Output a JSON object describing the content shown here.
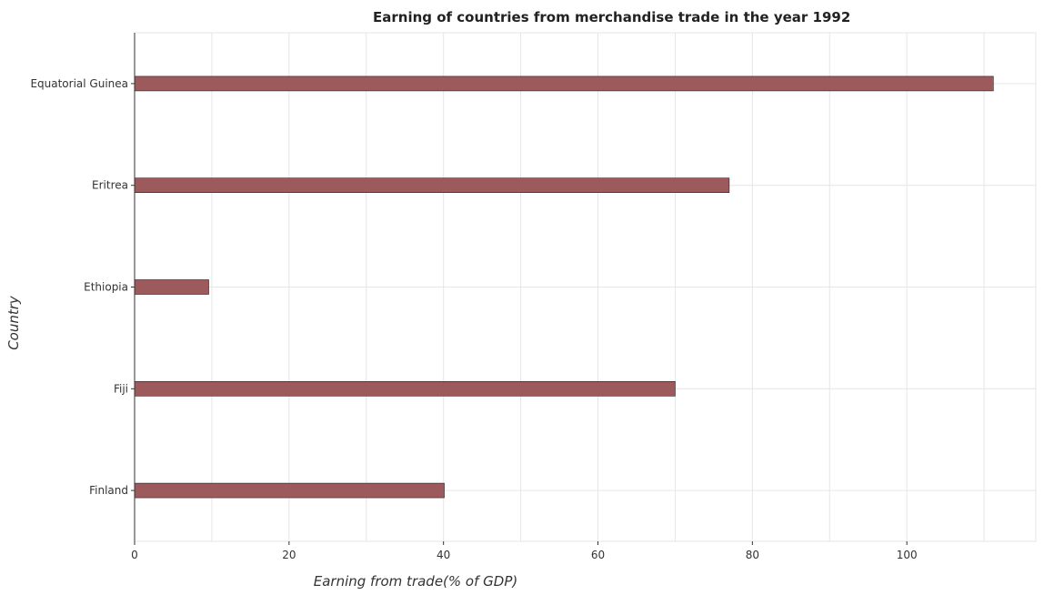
{
  "chart_data": {
    "type": "bar",
    "orientation": "horizontal",
    "title": "Earning of countries from merchandise trade in the year 1992",
    "xlabel": "Earning from trade(% of GDP)",
    "ylabel": "Country",
    "categories": [
      "Equatorial Guinea",
      "Eritrea",
      "Ethiopia",
      "Fiji",
      "Finland"
    ],
    "values": [
      111.2,
      77.0,
      9.6,
      70.0,
      40.1
    ],
    "xlim": [
      0,
      116.7
    ],
    "xticks": [
      0,
      20,
      40,
      60,
      80,
      100
    ],
    "grid": true,
    "legend": "none",
    "bar_color": "#9c5a5c"
  }
}
